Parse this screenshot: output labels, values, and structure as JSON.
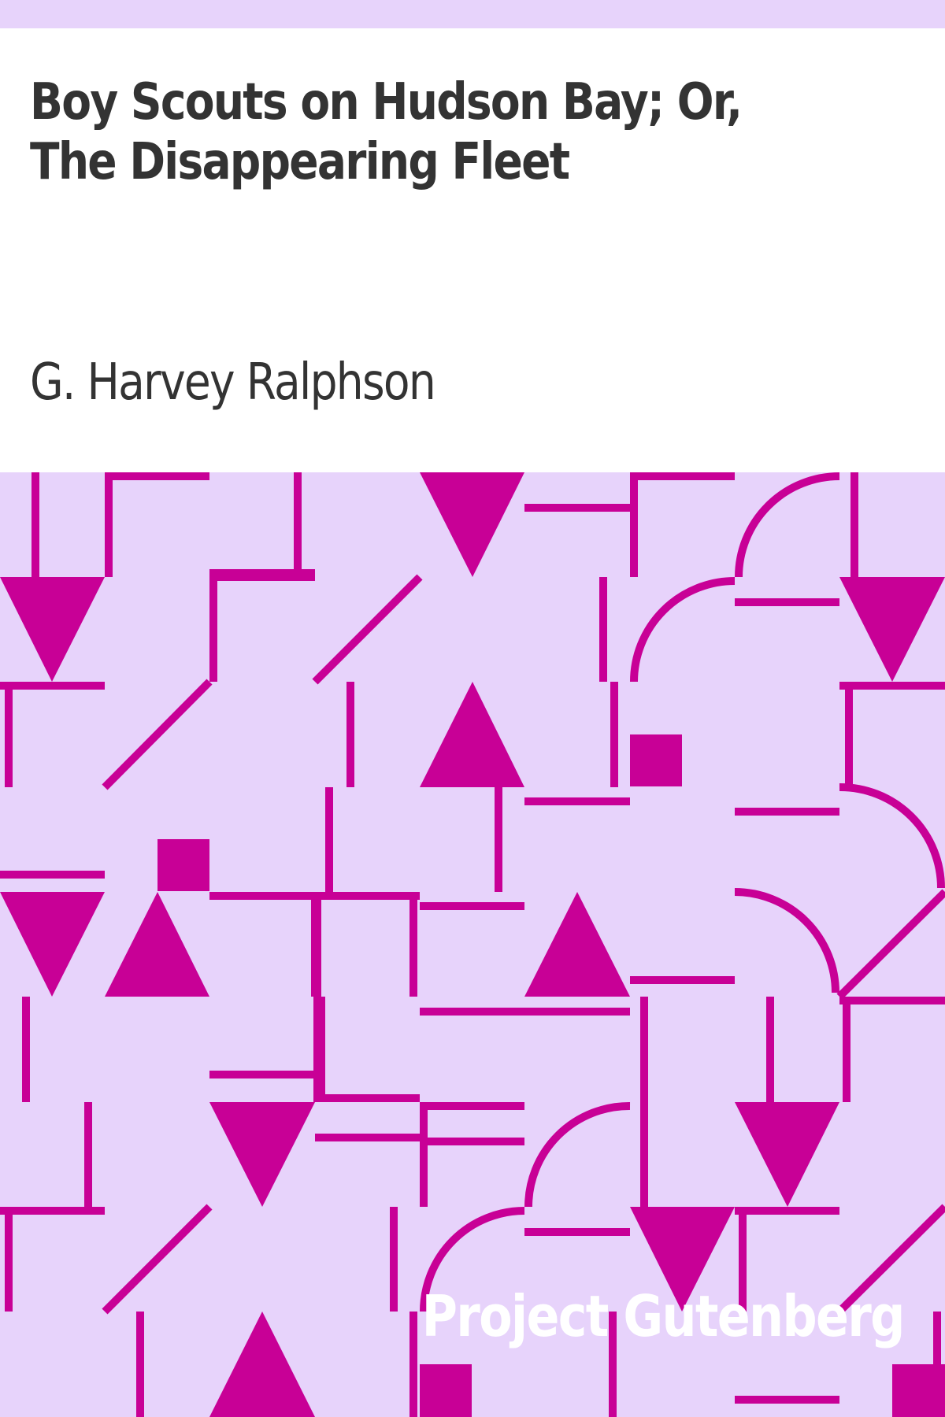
{
  "cover": {
    "title": "Boy Scouts on Hudson Bay; Or, The Disappearing Fleet",
    "author": "G. Harvey Ralphson",
    "publisher": "Project Gutenberg"
  },
  "colors": {
    "background": "#e7d3fb",
    "panel": "#ffffff",
    "accent": "#c80096",
    "text": "#333333"
  }
}
